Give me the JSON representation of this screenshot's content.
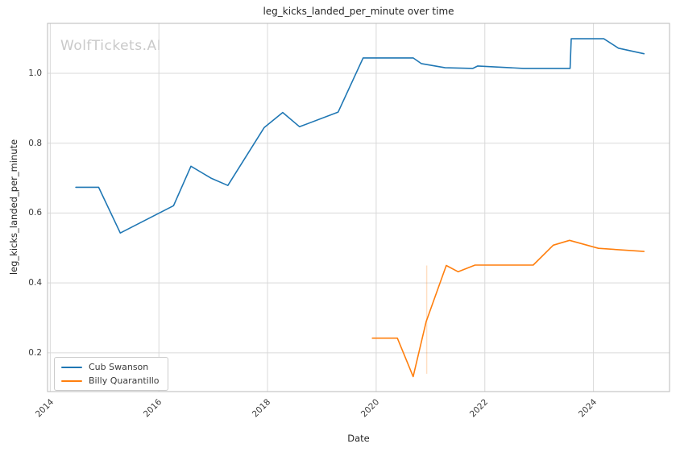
{
  "watermark": {
    "text": "WolfTickets.AI"
  },
  "colors": {
    "series_blue": "#1f77b4",
    "series_orange": "#ff7f0e",
    "grid": "#d9d9d9",
    "spine": "#b9b9b9",
    "title_text": "#262626",
    "tick_text": "#3b3b3b",
    "watermark_text": "#c9c9c9"
  },
  "chart_data": {
    "type": "line",
    "title": "leg_kicks_landed_per_minute over time",
    "xlabel": "Date",
    "ylabel": "leg_kicks_landed_per_minute",
    "xlim": [
      2013.95,
      2025.4
    ],
    "ylim": [
      0.089,
      1.143
    ],
    "x_ticks": [
      "2014",
      "2016",
      "2018",
      "2020",
      "2022",
      "2024"
    ],
    "x_tick_values": [
      2014,
      2016,
      2018,
      2020,
      2022,
      2024
    ],
    "y_ticks": [
      "0.2",
      "0.4",
      "0.6",
      "0.8",
      "1.0"
    ],
    "y_tick_values": [
      0.2,
      0.4,
      0.6,
      0.8,
      1.0
    ],
    "grid": true,
    "legend_position": "lower left",
    "series": [
      {
        "name": "Cub Swanson",
        "color": "#1f77b4",
        "points": [
          [
            2014.47,
            0.674
          ],
          [
            2014.89,
            0.674
          ],
          [
            2015.29,
            0.543
          ],
          [
            2016.27,
            0.621
          ],
          [
            2016.59,
            0.734
          ],
          [
            2016.96,
            0.7
          ],
          [
            2017.27,
            0.679
          ],
          [
            2017.94,
            0.845
          ],
          [
            2018.28,
            0.888
          ],
          [
            2018.59,
            0.847
          ],
          [
            2019.3,
            0.889
          ],
          [
            2019.76,
            1.044
          ],
          [
            2020.68,
            1.044
          ],
          [
            2020.83,
            1.028
          ],
          [
            2021.27,
            1.016
          ],
          [
            2021.78,
            1.014
          ],
          [
            2021.87,
            1.021
          ],
          [
            2022.71,
            1.014
          ],
          [
            2023.57,
            1.014
          ],
          [
            2023.59,
            1.099
          ],
          [
            2024.19,
            1.099
          ],
          [
            2024.46,
            1.072
          ],
          [
            2024.93,
            1.056
          ]
        ]
      },
      {
        "name": "Billy Quarantillo",
        "color": "#ff7f0e",
        "points": [
          [
            2019.93,
            0.242
          ],
          [
            2020.39,
            0.242
          ],
          [
            2020.68,
            0.132
          ],
          [
            2020.92,
            0.289
          ],
          [
            2021.29,
            0.45
          ],
          [
            2021.51,
            0.432
          ],
          [
            2021.82,
            0.451
          ],
          [
            2022.89,
            0.451
          ],
          [
            2023.26,
            0.508
          ],
          [
            2023.56,
            0.522
          ],
          [
            2024.09,
            0.499
          ],
          [
            2024.93,
            0.49
          ]
        ]
      }
    ],
    "event_markers": [
      {
        "x": 2020.93,
        "y_from": 0.14,
        "y_to": 0.45,
        "color": "#ff7f0e",
        "opacity": 0.25
      }
    ]
  }
}
